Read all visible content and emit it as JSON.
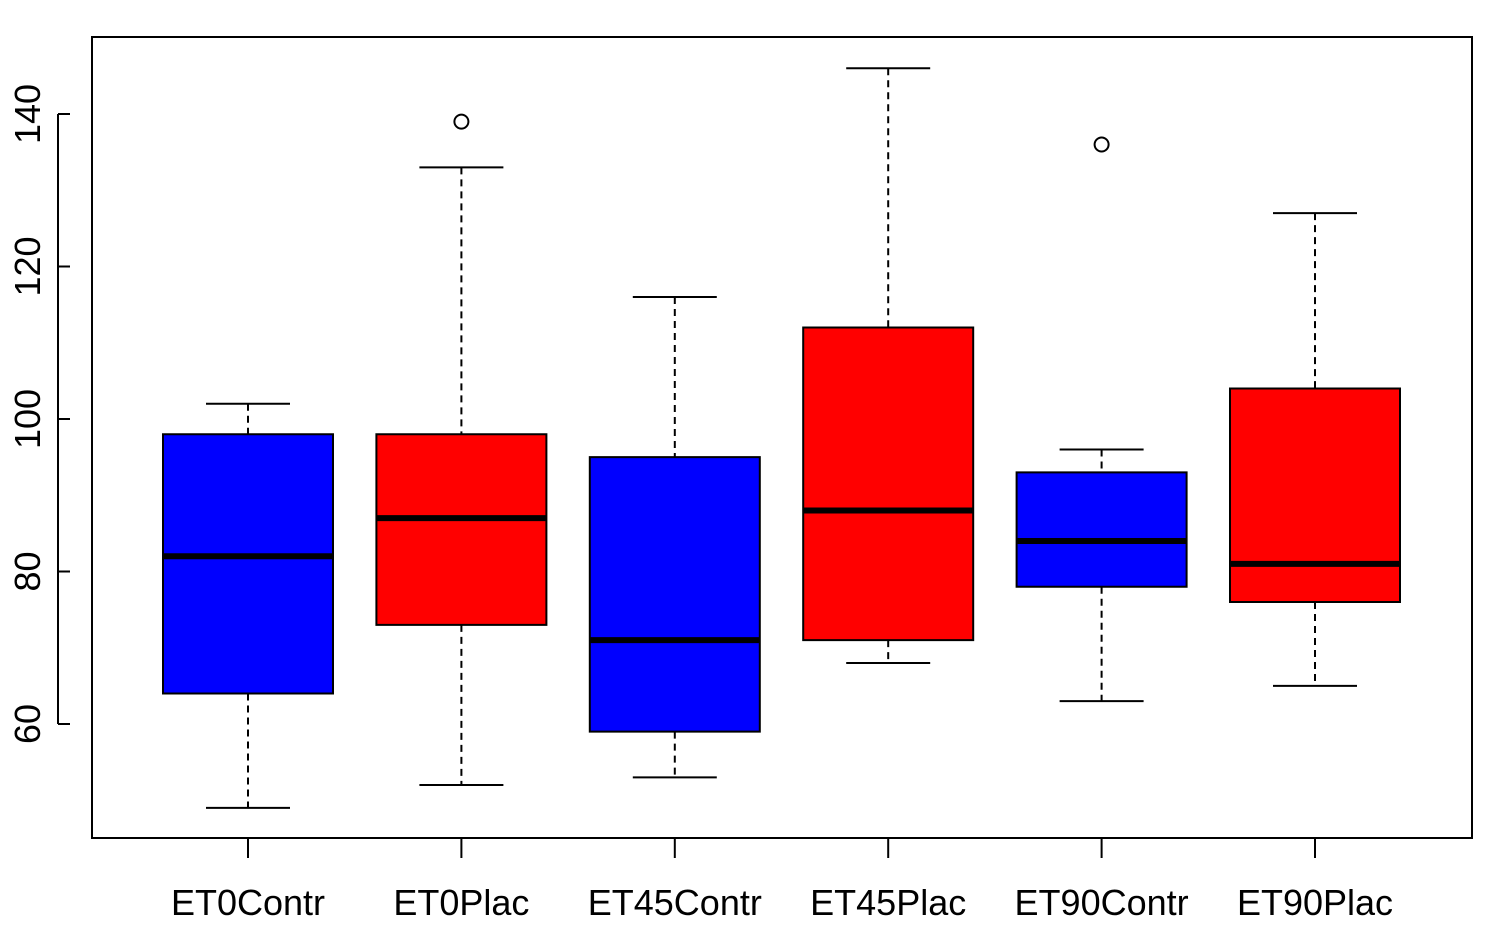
{
  "chart_data": {
    "type": "boxplot",
    "title": "",
    "xlabel": "",
    "ylabel": "",
    "ylim": [
      45,
      150
    ],
    "yticks": [
      60,
      80,
      100,
      120,
      140
    ],
    "categories": [
      "ET0Contr",
      "ET0Plac",
      "ET45Contr",
      "ET45Plac",
      "ET90Contr",
      "ET90Plac"
    ],
    "colors": [
      "#0000ff",
      "#ff0000",
      "#0000ff",
      "#ff0000",
      "#0000ff",
      "#ff0000"
    ],
    "boxes": [
      {
        "category": "ET0Contr",
        "whisker_low": 49,
        "q1": 64,
        "median": 82,
        "q3": 98,
        "whisker_high": 102,
        "outliers": []
      },
      {
        "category": "ET0Plac",
        "whisker_low": 52,
        "q1": 73,
        "median": 87,
        "q3": 98,
        "whisker_high": 133,
        "outliers": [
          139
        ]
      },
      {
        "category": "ET45Contr",
        "whisker_low": 53,
        "q1": 59,
        "median": 71,
        "q3": 95,
        "whisker_high": 116,
        "outliers": []
      },
      {
        "category": "ET45Plac",
        "whisker_low": 68,
        "q1": 71,
        "median": 88,
        "q3": 112,
        "whisker_high": 146,
        "outliers": []
      },
      {
        "category": "ET90Contr",
        "whisker_low": 63,
        "q1": 78,
        "median": 84,
        "q3": 93,
        "whisker_high": 96,
        "outliers": [
          136
        ]
      },
      {
        "category": "ET90Plac",
        "whisker_low": 65,
        "q1": 76,
        "median": 81,
        "q3": 104,
        "whisker_high": 127,
        "outliers": []
      }
    ],
    "grid": false,
    "legend": "none"
  }
}
